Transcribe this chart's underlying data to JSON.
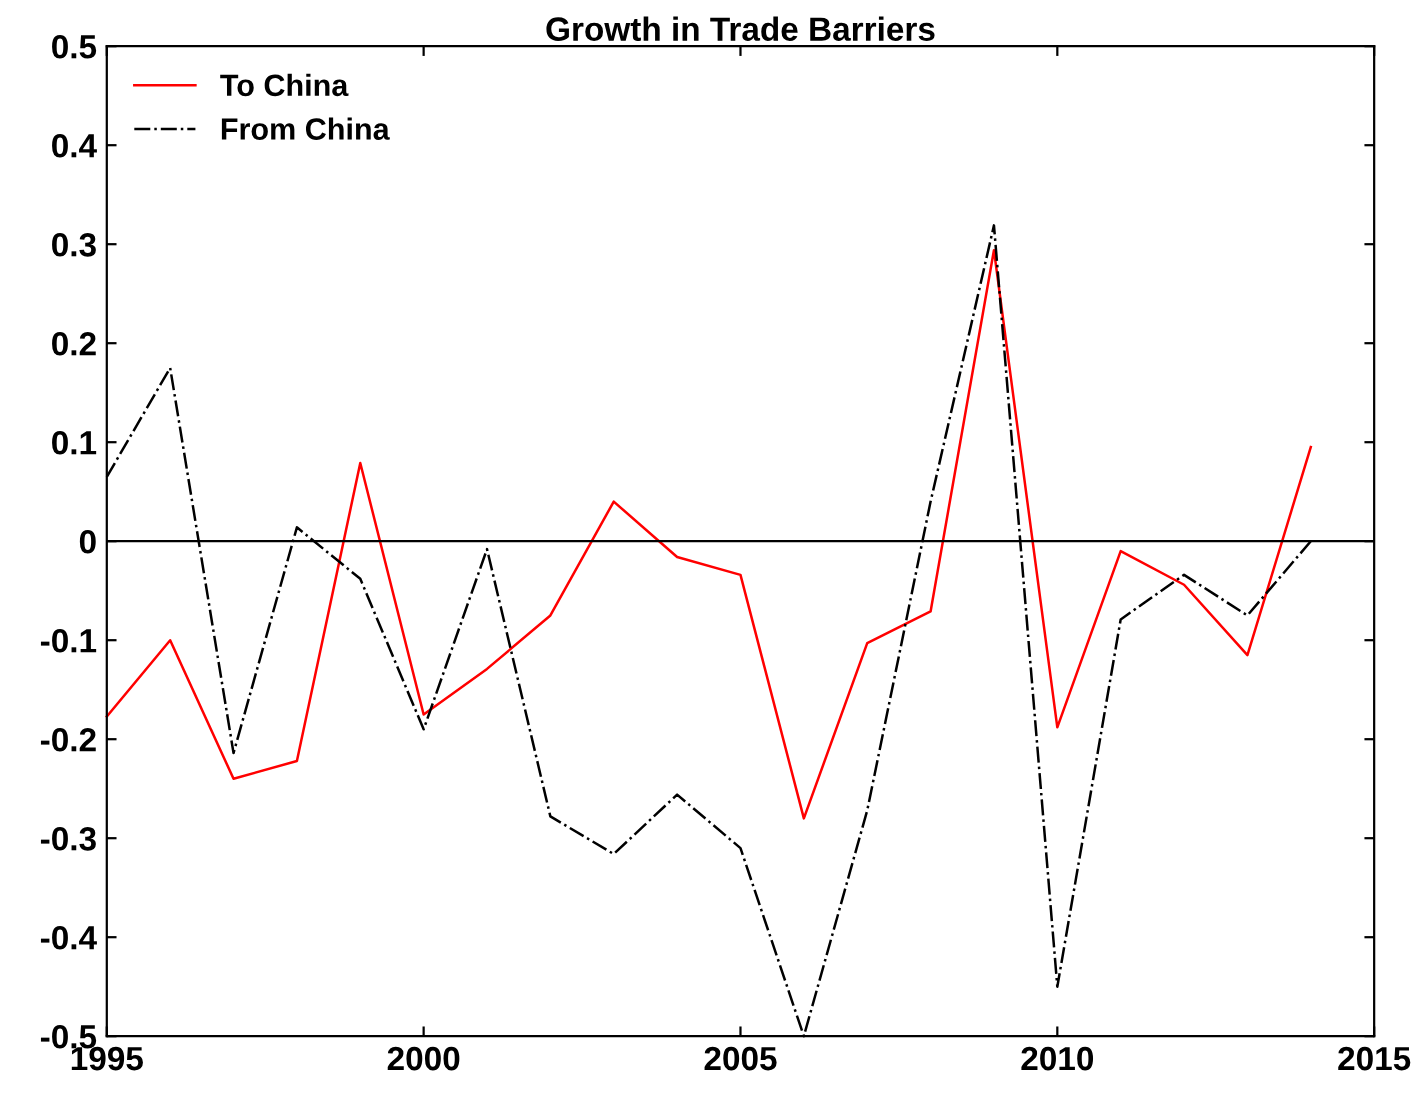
{
  "chart_data": {
    "type": "line",
    "title": "Growth in Trade Barriers",
    "x": [
      1995,
      1996,
      1997,
      1998,
      1999,
      2000,
      2001,
      2002,
      2003,
      2004,
      2005,
      2006,
      2007,
      2008,
      2009,
      2010,
      2011,
      2012,
      2013,
      2014
    ],
    "series": [
      {
        "name": "To China",
        "color": "#ff0000",
        "line_style": "solid",
        "values": [
          -0.177,
          -0.1,
          -0.24,
          -0.222,
          0.079,
          -0.175,
          -0.129,
          -0.075,
          0.04,
          -0.016,
          -0.034,
          -0.28,
          -0.103,
          -0.071,
          0.294,
          -0.188,
          -0.01,
          -0.044,
          -0.115,
          0.095
        ]
      },
      {
        "name": "From China",
        "color": "#000000",
        "line_style": "dashdot",
        "values": [
          0.065,
          0.175,
          -0.214,
          0.014,
          -0.038,
          -0.19,
          -0.008,
          -0.278,
          -0.316,
          -0.256,
          -0.31,
          -0.5,
          -0.272,
          0.04,
          0.319,
          -0.45,
          -0.079,
          -0.034,
          -0.075,
          0.0
        ]
      }
    ],
    "xlim": [
      1995,
      2015
    ],
    "xticks": [
      1995,
      2000,
      2005,
      2010,
      2015
    ],
    "ylim": [
      -0.5,
      0.5
    ],
    "yticks": [
      -0.5,
      -0.4,
      -0.3,
      -0.2,
      -0.1,
      0,
      0.1,
      0.2,
      0.3,
      0.4,
      0.5
    ],
    "ref_lines": [
      {
        "axis": "y",
        "value": 0,
        "color": "#000000"
      }
    ],
    "grid": false,
    "legend": "top left"
  }
}
